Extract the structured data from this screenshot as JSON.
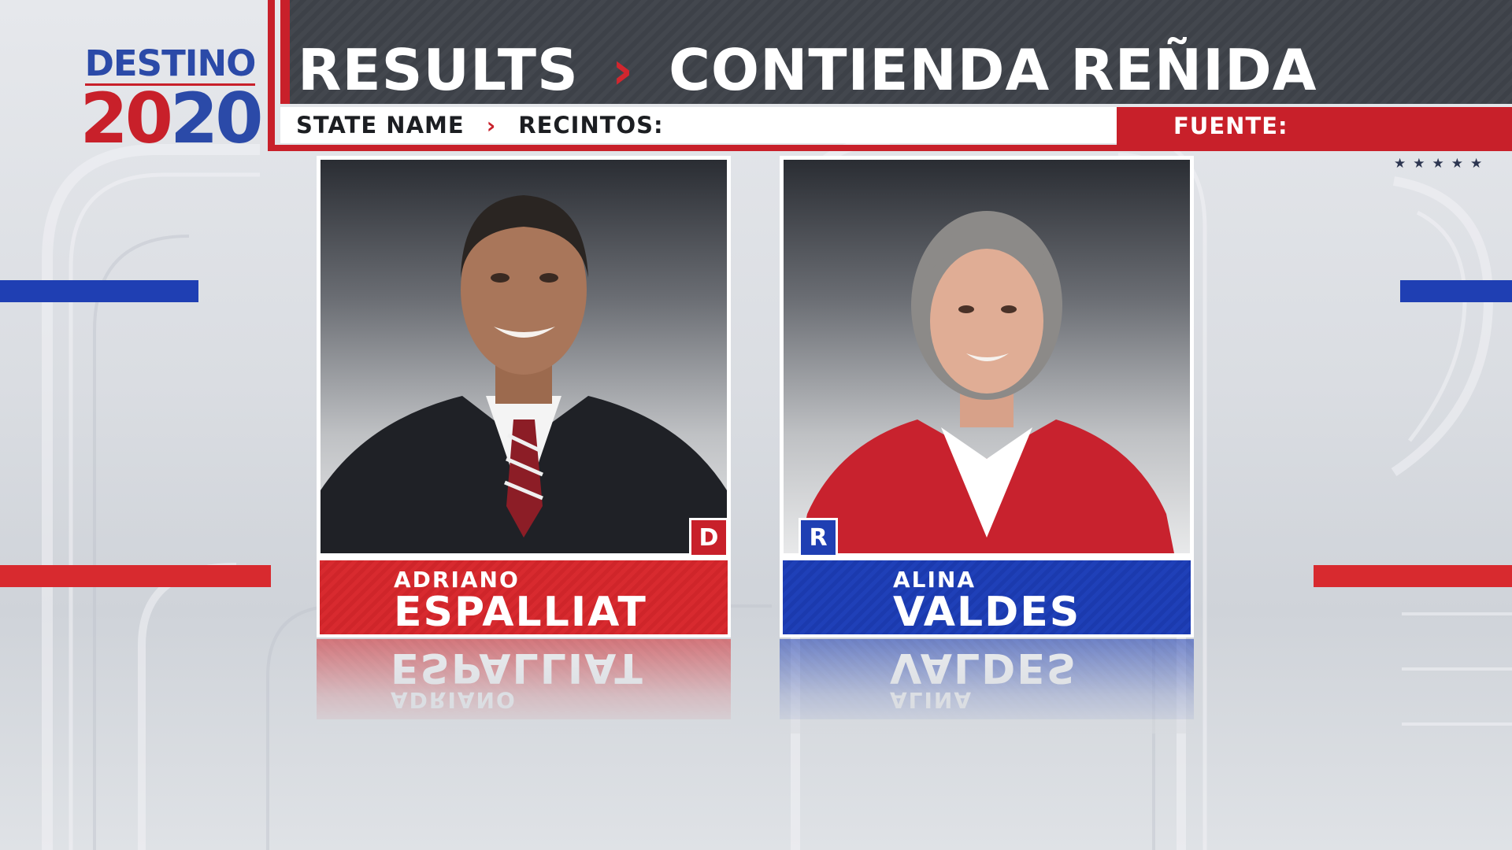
{
  "brand": {
    "line1": "DESTINO",
    "year_part1": "20",
    "year_part2": "20"
  },
  "header": {
    "title_left": "RESULTS",
    "separator": "›",
    "title_right": "CONTIENDA REÑIDA",
    "state_label": "STATE NAME",
    "sub_separator": "›",
    "precincts_label": "RECINTOS:",
    "source_label": "FUENTE:"
  },
  "decor": {
    "stars": "★★★★★"
  },
  "colors": {
    "red": "#c8202a",
    "blue": "#1f3fb3",
    "header_dark": "#43474e"
  },
  "candidates": [
    {
      "first_name": "ADRIANO",
      "last_name": "ESPALLIAT",
      "party": "D",
      "party_color": "#c8202a"
    },
    {
      "first_name": "ALINA",
      "last_name": "VALDES",
      "party": "R",
      "party_color": "#1f3fb3"
    }
  ]
}
